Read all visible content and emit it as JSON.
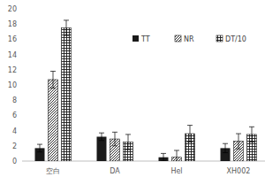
{
  "chart_data": {
    "type": "bar",
    "categories": [
      "空白",
      "DA",
      "Hel",
      "XH002"
    ],
    "series": [
      {
        "name": "TT",
        "color": "#1a1a1a",
        "values": [
          1.7,
          3.2,
          0.5,
          1.7
        ],
        "errors": [
          0.5,
          0.5,
          0.5,
          0.6
        ]
      },
      {
        "name": "NR",
        "color": "#1a1a1a",
        "values": [
          10.7,
          2.9,
          0.5,
          2.6
        ],
        "errors": [
          1.1,
          0.9,
          0.9,
          1.0
        ]
      },
      {
        "name": "DT/10",
        "color": "#1a1a1a",
        "values": [
          17.5,
          2.5,
          3.6,
          3.5
        ],
        "errors": [
          1.0,
          1.0,
          1.1,
          1.0
        ]
      }
    ],
    "ylim": [
      0,
      20
    ],
    "yticks": [
      0,
      2,
      4,
      6,
      8,
      10,
      12,
      14,
      16,
      18,
      20
    ],
    "grid": false,
    "legend": "top"
  }
}
